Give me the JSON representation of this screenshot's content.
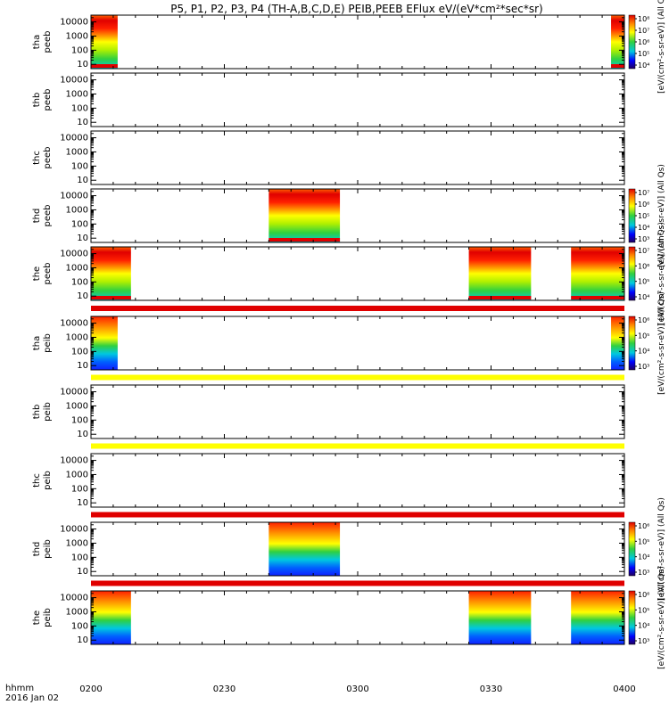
{
  "title": "P5, P1, P2, P3, P4 (TH-A,B,C,D,E) PEIB,PEEB EFlux eV/(eV*cm²*sec*sr)",
  "footer": {
    "line1": "hhmm",
    "line2": "2016 Jan 02"
  },
  "colors": {
    "red": "#e00000",
    "yellow": "#ffff00",
    "green": "#30d040",
    "cyan": "#00c8e0",
    "blue": "#0000ff",
    "purple": "#6a00a0"
  },
  "chart_data": {
    "type": "heatmap",
    "xlabel": "hhmm",
    "x_ticks": [
      "0200",
      "0230",
      "0300",
      "0330",
      "0400"
    ],
    "x_tick_minutes": [
      120,
      150,
      180,
      210,
      240
    ],
    "xlim_minutes": [
      120,
      240
    ],
    "y_scale": "log",
    "y_ticks": [
      "10",
      "100",
      "1000",
      "10000"
    ],
    "ylim": [
      5,
      30000
    ],
    "panels": [
      {
        "label": [
          "tha",
          "peeb"
        ],
        "intervals": [
          [
            120,
            126
          ],
          [
            237,
            240
          ]
        ],
        "palette": "ee",
        "colorbar": {
          "labels": [
            "10⁸",
            "10⁷",
            "10⁶",
            "10⁵",
            "10⁴"
          ],
          "title": "[eV/(cm²-s-sr-eV)] (All Qs)"
        }
      },
      {
        "label": [
          "thb",
          "peeb"
        ],
        "intervals": []
      },
      {
        "label": [
          "thc",
          "peeb"
        ],
        "intervals": []
      },
      {
        "label": [
          "thd",
          "peeb"
        ],
        "intervals": [
          [
            160,
            176
          ]
        ],
        "palette": "ee",
        "colorbar": {
          "labels": [
            "10⁷",
            "10⁶",
            "10⁵",
            "10⁴",
            "10³"
          ],
          "title": "[eV/(cm²-s-sr-eV)] (All Qs)"
        }
      },
      {
        "label": [
          "the",
          "peeb"
        ],
        "intervals": [
          [
            120,
            129
          ],
          [
            205,
            219
          ],
          [
            228,
            240
          ]
        ],
        "palette": "ee",
        "colorbar": {
          "labels": [
            "10⁷",
            "10⁶",
            "10⁵",
            "10⁴"
          ],
          "title": "[eV/(cm²-s-sr-eV)] (All Qs)"
        }
      },
      {
        "label": [
          "tha",
          "peib"
        ],
        "intervals": [
          [
            120,
            126
          ],
          [
            237,
            240
          ]
        ],
        "palette": "ion",
        "colorbar": {
          "labels": [
            "10⁶",
            "10⁵",
            "10⁴",
            "10³"
          ],
          "title": "[eV/(cm²-s-sr-eV)] (All Qs)"
        }
      },
      {
        "label": [
          "thb",
          "peib"
        ],
        "intervals": []
      },
      {
        "label": [
          "thc",
          "peib"
        ],
        "intervals": []
      },
      {
        "label": [
          "thd",
          "peib"
        ],
        "intervals": [
          [
            160,
            176
          ]
        ],
        "palette": "ion",
        "colorbar": {
          "labels": [
            "10⁶",
            "10⁵",
            "10⁴",
            "10³"
          ],
          "title": "[eV/(cm²-s-sr-eV)] (All Qs)"
        }
      },
      {
        "label": [
          "the",
          "peib"
        ],
        "intervals": [
          [
            120,
            129
          ],
          [
            205,
            219
          ],
          [
            228,
            240
          ]
        ],
        "palette": "ion",
        "colorbar": {
          "labels": [
            "10⁶",
            "10⁵",
            "10⁴",
            "10³"
          ],
          "title": "[eV/(cm²-s-sr-eV)] (All Qs)"
        }
      }
    ],
    "strips": [
      {
        "after_panel": 4,
        "color": "red"
      },
      {
        "after_panel": 5,
        "color": "yellow"
      },
      {
        "after_panel": 6,
        "color": "yellow"
      },
      {
        "after_panel": 7,
        "color": "red"
      },
      {
        "after_panel": 8,
        "color": "red"
      }
    ]
  }
}
